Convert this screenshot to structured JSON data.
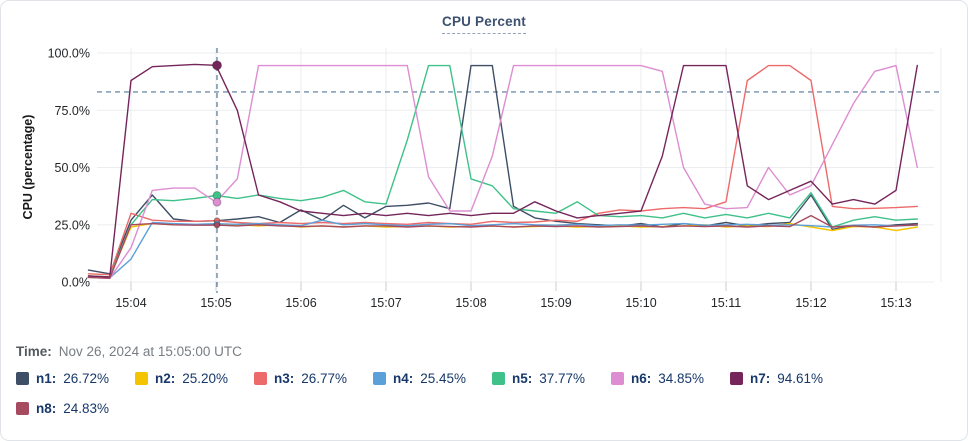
{
  "title": "CPU Percent",
  "time": {
    "label": "Time:",
    "value": "Nov 26, 2024 at 15:05:00 UTC"
  },
  "legend": {
    "items": [
      {
        "id": "n1",
        "label": "n1:",
        "value": "26.72%",
        "color": "#3e4e66"
      },
      {
        "id": "n2",
        "label": "n2:",
        "value": "25.20%",
        "color": "#f5c400"
      },
      {
        "id": "n3",
        "label": "n3:",
        "value": "26.77%",
        "color": "#ed6a6a"
      },
      {
        "id": "n4",
        "label": "n4:",
        "value": "25.45%",
        "color": "#5ba0d8"
      },
      {
        "id": "n5",
        "label": "n5:",
        "value": "37.77%",
        "color": "#3fc189"
      },
      {
        "id": "n6",
        "label": "n6:",
        "value": "34.85%",
        "color": "#dd8dd1"
      },
      {
        "id": "n7",
        "label": "n7:",
        "value": "94.61%",
        "color": "#75255a"
      },
      {
        "id": "n8",
        "label": "n8:",
        "value": "24.83%",
        "color": "#a64a60"
      }
    ]
  },
  "chart_data": {
    "type": "line",
    "title": "CPU Percent",
    "xlabel": "",
    "ylabel": "CPU (percentage)",
    "ylim": [
      0,
      102
    ],
    "grid": true,
    "legend_position": "bottom",
    "x_unit": "time (HH:MM UTC), decimal minutes after 15:00",
    "x": [
      3.5,
      3.75,
      4,
      4.25,
      4.5,
      4.75,
      5,
      5.25,
      5.5,
      5.75,
      6,
      6.25,
      6.5,
      6.75,
      7,
      7.25,
      7.5,
      7.75,
      8,
      8.25,
      8.5,
      8.75,
      9,
      9.25,
      9.5,
      9.75,
      10,
      10.25,
      10.5,
      10.75,
      11,
      11.25,
      11.5,
      11.75,
      12,
      12.25,
      12.5,
      12.75,
      13,
      13.25
    ],
    "x_ticks": [
      {
        "t": 4,
        "label": "15:04"
      },
      {
        "t": 5,
        "label": "15:05"
      },
      {
        "t": 6,
        "label": "15:06"
      },
      {
        "t": 7,
        "label": "15:07"
      },
      {
        "t": 8,
        "label": "15:08"
      },
      {
        "t": 9,
        "label": "15:09"
      },
      {
        "t": 10,
        "label": "15:10"
      },
      {
        "t": 11,
        "label": "15:11"
      },
      {
        "t": 12,
        "label": "15:12"
      },
      {
        "t": 13,
        "label": "15:13"
      }
    ],
    "y_ticks": [
      {
        "v": 0,
        "label": "0.0%"
      },
      {
        "v": 25,
        "label": "25.0%"
      },
      {
        "v": 50,
        "label": "50.0%"
      },
      {
        "v": 75,
        "label": "75.0%"
      },
      {
        "v": 100,
        "label": "100.0%"
      }
    ],
    "threshold_line": {
      "value": 83,
      "style": "dashed",
      "color": "#53799a"
    },
    "crosshair": {
      "t": 5,
      "index": 6,
      "label": "15:05",
      "color": "#53799a"
    },
    "style": {
      "grid_color": "#ebedf0",
      "tick_color": "#c9cdd1",
      "axis_text_color": "#232629"
    },
    "series": [
      {
        "name": "n1",
        "color": "#3e4e66",
        "values": [
          5.2,
          3.6,
          27,
          38,
          27.5,
          26.5,
          26.72,
          27.5,
          28.5,
          26,
          31.5,
          27,
          33.5,
          28,
          33,
          33.5,
          34.5,
          32,
          94.5,
          94.5,
          33,
          28,
          26.5,
          25.5,
          25,
          24.5,
          25.5,
          24,
          25.5,
          24.5,
          26,
          24.5,
          25.5,
          26,
          38,
          23,
          24.5,
          24,
          25,
          25.5
        ]
      },
      {
        "name": "n2",
        "color": "#f5c400",
        "values": [
          2.6,
          2.2,
          24,
          25.5,
          25,
          25,
          25.2,
          25,
          24.5,
          25,
          24,
          24.5,
          24,
          24.5,
          24,
          24.2,
          24.5,
          24,
          24.2,
          24.5,
          24,
          24.2,
          24.5,
          24,
          24.2,
          24.5,
          24,
          24.2,
          24.5,
          25,
          24,
          24.5,
          24.2,
          25.5,
          24,
          22.5,
          24.2,
          24,
          22.5,
          24
        ]
      },
      {
        "name": "n3",
        "color": "#ed6a6a",
        "values": [
          3.6,
          3.2,
          30,
          27,
          26.5,
          26.5,
          26.77,
          26,
          25.5,
          26,
          25.5,
          26,
          25.5,
          26,
          25.5,
          25.2,
          26,
          25.5,
          25.2,
          26.5,
          26,
          26.2,
          27,
          26.5,
          30,
          31.5,
          31,
          32,
          32.5,
          32,
          35,
          88,
          94.5,
          94.5,
          88,
          33,
          32,
          32.2,
          32.5,
          33
        ]
      },
      {
        "name": "n4",
        "color": "#5ba0d8",
        "values": [
          2.2,
          1.8,
          10,
          26,
          25.5,
          25.2,
          25.45,
          25.2,
          25.5,
          25,
          24.6,
          27,
          25,
          25.5,
          25,
          24.6,
          25.2,
          25.5,
          24.6,
          25,
          25.5,
          25,
          24.8,
          25.2,
          24.6,
          25,
          24.8,
          25.2,
          25.5,
          24.8,
          25,
          25.2,
          24.8,
          25,
          24.6,
          24,
          24.8,
          25,
          24.5,
          24.8
        ]
      },
      {
        "name": "n5",
        "color": "#3fc189",
        "values": [
          2.6,
          2.2,
          25,
          36,
          35.5,
          36.5,
          37.77,
          36.5,
          38,
          36.5,
          35.5,
          37,
          40,
          35,
          34,
          62,
          94.5,
          94.5,
          45,
          42,
          32,
          31,
          30,
          35,
          29,
          28.5,
          29,
          28,
          30,
          28,
          29.5,
          28,
          30,
          28,
          39,
          24,
          27,
          28.5,
          27,
          27.5
        ]
      },
      {
        "name": "n6",
        "color": "#dd8dd1",
        "values": [
          2.0,
          1.6,
          15,
          40,
          41,
          41,
          34.85,
          45,
          94.5,
          94.5,
          94.5,
          94.5,
          94.5,
          94.5,
          94.5,
          94.5,
          46,
          31,
          31,
          55,
          94.5,
          94.5,
          94.5,
          94.5,
          94.5,
          94.5,
          94.5,
          92,
          50,
          34,
          32,
          32.5,
          50,
          38,
          42,
          60,
          78,
          92,
          94.5,
          50
        ]
      },
      {
        "name": "n7",
        "color": "#75255a",
        "values": [
          2.6,
          2.2,
          88,
          94,
          94.5,
          95,
          94.61,
          75,
          38,
          35,
          31,
          30,
          29,
          30,
          29,
          30,
          29,
          30,
          29,
          30,
          30,
          35,
          31,
          28,
          29,
          30,
          31,
          55,
          94.5,
          94.5,
          94.5,
          42,
          36,
          40,
          44,
          34,
          36,
          34,
          40,
          94.6
        ]
      },
      {
        "name": "n8",
        "color": "#a64a60",
        "values": [
          2.0,
          1.6,
          25,
          25.5,
          25,
          24.8,
          24.83,
          24.5,
          25,
          24.5,
          24.2,
          24.5,
          24,
          24.5,
          24.5,
          24,
          24.5,
          24.2,
          24,
          24.5,
          24,
          24.5,
          24.2,
          24.5,
          24,
          24.2,
          24.5,
          24,
          24.5,
          24.2,
          24.5,
          24,
          24.5,
          24.2,
          29,
          24,
          24.5,
          24,
          24.5,
          25
        ]
      }
    ]
  }
}
